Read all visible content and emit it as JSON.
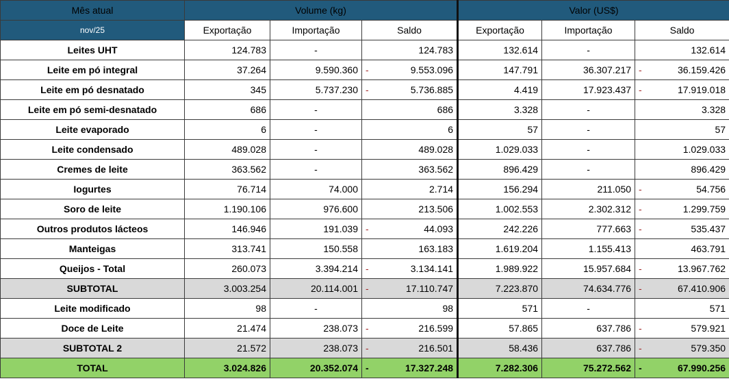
{
  "header": {
    "current_month_label": "Mês atual",
    "month": "nov/25",
    "volume_group": "Volume (kg)",
    "value_group": "Valor (US$)",
    "columns": [
      "Exportação",
      "Importação",
      "Saldo",
      "Exportação",
      "Importação",
      "Saldo"
    ]
  },
  "rows": [
    {
      "label": "Leites UHT",
      "type": "normal",
      "cells": [
        {
          "v": "124.783"
        },
        {
          "v": "-"
        },
        {
          "v": "124.783"
        },
        {
          "v": "132.614"
        },
        {
          "v": "-"
        },
        {
          "v": "132.614"
        }
      ]
    },
    {
      "label": "Leite em pó integral",
      "type": "normal",
      "cells": [
        {
          "v": "37.264"
        },
        {
          "v": "9.590.360"
        },
        {
          "v": "9.553.096",
          "neg": true
        },
        {
          "v": "147.791"
        },
        {
          "v": "36.307.217"
        },
        {
          "v": "36.159.426",
          "neg": true
        }
      ]
    },
    {
      "label": "Leite em pó desnatado",
      "type": "normal",
      "cells": [
        {
          "v": "345"
        },
        {
          "v": "5.737.230"
        },
        {
          "v": "5.736.885",
          "neg": true
        },
        {
          "v": "4.419"
        },
        {
          "v": "17.923.437"
        },
        {
          "v": "17.919.018",
          "neg": true
        }
      ]
    },
    {
      "label": "Leite em pó semi-desnatado",
      "type": "normal",
      "cells": [
        {
          "v": "686"
        },
        {
          "v": "-"
        },
        {
          "v": "686"
        },
        {
          "v": "3.328"
        },
        {
          "v": "-"
        },
        {
          "v": "3.328"
        }
      ]
    },
    {
      "label": "Leite evaporado",
      "type": "normal",
      "cells": [
        {
          "v": "6"
        },
        {
          "v": "-"
        },
        {
          "v": "6"
        },
        {
          "v": "57"
        },
        {
          "v": "-"
        },
        {
          "v": "57"
        }
      ]
    },
    {
      "label": "Leite condensado",
      "type": "normal",
      "cells": [
        {
          "v": "489.028"
        },
        {
          "v": "-"
        },
        {
          "v": "489.028"
        },
        {
          "v": "1.029.033"
        },
        {
          "v": "-"
        },
        {
          "v": "1.029.033"
        }
      ]
    },
    {
      "label": "Cremes de leite",
      "type": "normal",
      "cells": [
        {
          "v": "363.562"
        },
        {
          "v": "-"
        },
        {
          "v": "363.562"
        },
        {
          "v": "896.429"
        },
        {
          "v": "-"
        },
        {
          "v": "896.429"
        }
      ]
    },
    {
      "label": "Iogurtes",
      "type": "normal",
      "cells": [
        {
          "v": "76.714"
        },
        {
          "v": "74.000"
        },
        {
          "v": "2.714"
        },
        {
          "v": "156.294"
        },
        {
          "v": "211.050"
        },
        {
          "v": "54.756",
          "neg": true
        }
      ]
    },
    {
      "label": "Soro de leite",
      "type": "normal",
      "cells": [
        {
          "v": "1.190.106"
        },
        {
          "v": "976.600"
        },
        {
          "v": "213.506"
        },
        {
          "v": "1.002.553"
        },
        {
          "v": "2.302.312"
        },
        {
          "v": "1.299.759",
          "neg": true
        }
      ]
    },
    {
      "label": "Outros produtos lácteos",
      "type": "normal",
      "cells": [
        {
          "v": "146.946"
        },
        {
          "v": "191.039"
        },
        {
          "v": "44.093",
          "neg": true
        },
        {
          "v": "242.226"
        },
        {
          "v": "777.663"
        },
        {
          "v": "535.437",
          "neg": true
        }
      ]
    },
    {
      "label": "Manteigas",
      "type": "normal",
      "cells": [
        {
          "v": "313.741"
        },
        {
          "v": "150.558"
        },
        {
          "v": "163.183"
        },
        {
          "v": "1.619.204"
        },
        {
          "v": "1.155.413"
        },
        {
          "v": "463.791"
        }
      ]
    },
    {
      "label": "Queijos - Total",
      "type": "normal",
      "cells": [
        {
          "v": "260.073"
        },
        {
          "v": "3.394.214"
        },
        {
          "v": "3.134.141",
          "neg": true
        },
        {
          "v": "1.989.922"
        },
        {
          "v": "15.957.684"
        },
        {
          "v": "13.967.762",
          "neg": true
        }
      ]
    },
    {
      "label": "SUBTOTAL",
      "type": "subtotal",
      "cells": [
        {
          "v": "3.003.254"
        },
        {
          "v": "20.114.001"
        },
        {
          "v": "17.110.747",
          "neg": true
        },
        {
          "v": "7.223.870"
        },
        {
          "v": "74.634.776"
        },
        {
          "v": "67.410.906",
          "neg": true
        }
      ]
    },
    {
      "label": "Leite modificado",
      "type": "normal",
      "cells": [
        {
          "v": "98"
        },
        {
          "v": "-"
        },
        {
          "v": "98"
        },
        {
          "v": "571"
        },
        {
          "v": "-"
        },
        {
          "v": "571"
        }
      ]
    },
    {
      "label": "Doce de Leite",
      "type": "normal",
      "cells": [
        {
          "v": "21.474"
        },
        {
          "v": "238.073"
        },
        {
          "v": "216.599",
          "neg": true
        },
        {
          "v": "57.865"
        },
        {
          "v": "637.786"
        },
        {
          "v": "579.921",
          "neg": true
        }
      ]
    },
    {
      "label": "SUBTOTAL 2",
      "type": "subtotal",
      "cells": [
        {
          "v": "21.572"
        },
        {
          "v": "238.073"
        },
        {
          "v": "216.501",
          "neg": true
        },
        {
          "v": "58.436"
        },
        {
          "v": "637.786"
        },
        {
          "v": "579.350",
          "neg": true
        }
      ]
    },
    {
      "label": "TOTAL",
      "type": "total",
      "cells": [
        {
          "v": "3.024.826"
        },
        {
          "v": "20.352.074"
        },
        {
          "v": "17.327.248",
          "neg": true
        },
        {
          "v": "7.282.306"
        },
        {
          "v": "75.272.562"
        },
        {
          "v": "67.990.256",
          "neg": true
        }
      ]
    }
  ],
  "colors": {
    "header_bg": "#215a7c",
    "header_text": "#ffffff",
    "negative_text": "#a32a2a",
    "subtotal_bg": "#d9d9d9",
    "total_bg": "#92d268"
  }
}
